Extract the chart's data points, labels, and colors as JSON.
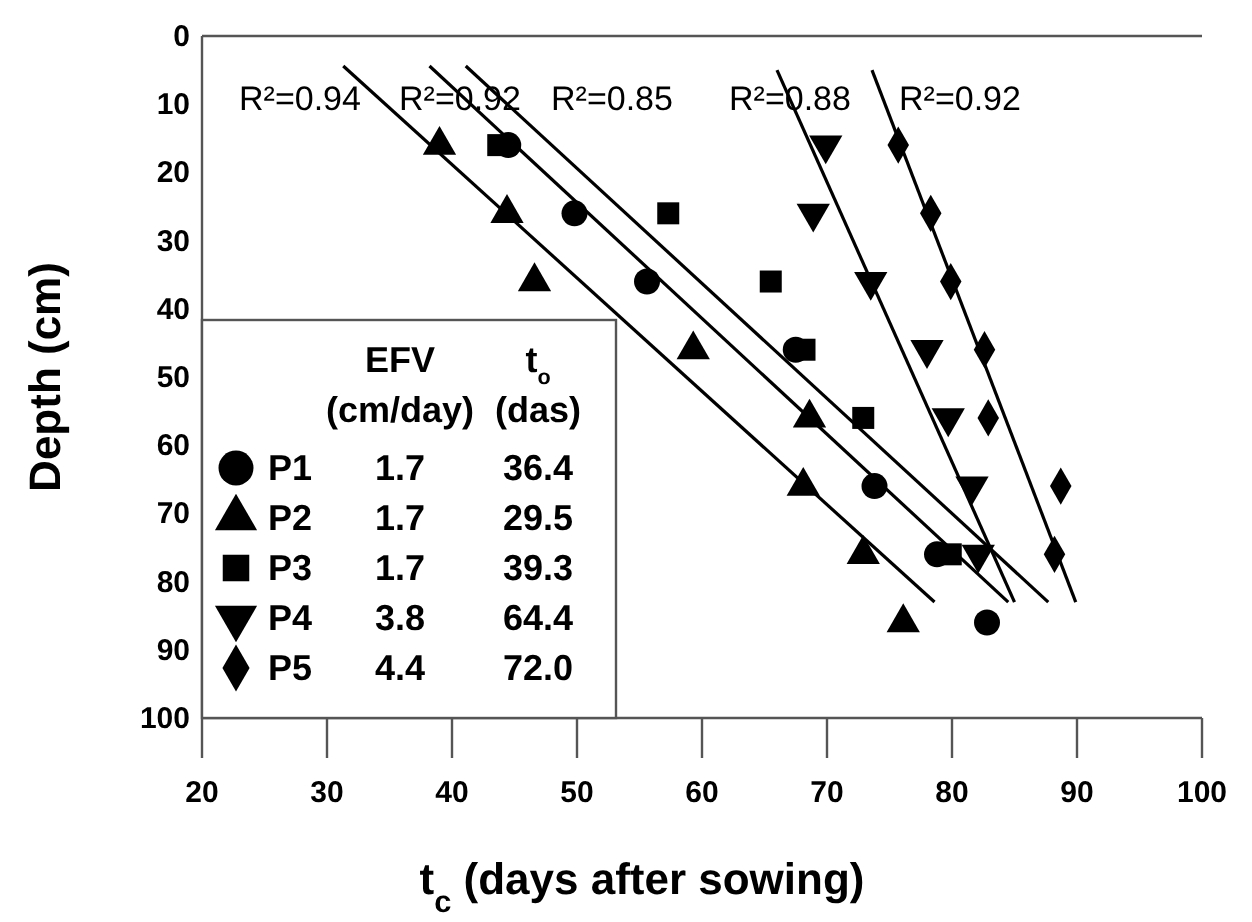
{
  "chart_data": {
    "type": "scatter",
    "xlabel": "t$_{c}$ (days after sowing)",
    "ylabel": "Depth (cm)",
    "xlim": [
      20,
      100
    ],
    "xticks": [
      20,
      30,
      40,
      50,
      60,
      70,
      80,
      90,
      100
    ],
    "ylim": [
      100,
      0
    ],
    "yticks": [
      0,
      10,
      20,
      30,
      40,
      50,
      60,
      70,
      80,
      90,
      100
    ],
    "grid": false,
    "legend": "bottom left",
    "series": [
      {
        "name": "P1",
        "color": "#000000",
        "marker": "circle",
        "x": [
          44.5,
          49.8,
          55.6,
          67.5,
          73.8,
          78.8,
          82.8
        ],
        "values": [
          16,
          26,
          36,
          46,
          66,
          76,
          86
        ]
      },
      {
        "name": "P2",
        "color": "#000000",
        "marker": "triangle",
        "x": [
          39.0,
          44.4,
          46.6,
          59.3,
          68.6,
          68.1,
          72.9,
          76.1
        ],
        "values": [
          16,
          26,
          36,
          46,
          56,
          66,
          76,
          86
        ]
      },
      {
        "name": "P3",
        "color": "#000000",
        "marker": "square",
        "x": [
          43.7,
          57.3,
          65.5,
          68.2,
          72.9,
          79.9
        ],
        "values": [
          16,
          26,
          36,
          46,
          56,
          76
        ]
      },
      {
        "name": "P4",
        "color": "#000000",
        "marker": "triangle-down",
        "x": [
          69.9,
          68.9,
          73.5,
          78.0,
          79.7,
          81.6,
          82.1
        ],
        "values": [
          16,
          26,
          36,
          46,
          56,
          66,
          76
        ]
      },
      {
        "name": "P5",
        "color": "#000000",
        "marker": "diamond",
        "x": [
          75.7,
          78.3,
          79.9,
          82.6,
          82.9,
          88.7,
          88.2
        ],
        "values": [
          16,
          26,
          36,
          46,
          56,
          66,
          76
        ]
      },
      {
        "type": "line",
        "color": "#000000",
        "x": [
          38.2,
          84.5
        ],
        "values": [
          4.4,
          83
        ]
      },
      {
        "type": "line",
        "color": "#000000",
        "x": [
          31.3,
          78.6
        ],
        "values": [
          4.4,
          83
        ]
      },
      {
        "type": "line",
        "color": "#000000",
        "x": [
          41.1,
          87.7
        ],
        "values": [
          4.4,
          83
        ]
      },
      {
        "type": "line",
        "color": "#000000",
        "x": [
          66,
          85
        ],
        "values": [
          5,
          83
        ]
      },
      {
        "type": "line",
        "color": "#000000",
        "x": [
          73.6,
          89.9
        ],
        "values": [
          5,
          83
        ]
      }
    ],
    "annotations": [
      "R²=0.94",
      "R²=0.92",
      "R²=0.85",
      "R²=0.88",
      "R²=0.92",
      "EFV",
      "(cm/day)",
      "t$_{o}$",
      "(das)",
      "1.7",
      "36.4",
      "1.7",
      "29.5",
      "1.7",
      "39.3",
      "3.8",
      "64.4",
      "4.4",
      "72.0"
    ]
  }
}
